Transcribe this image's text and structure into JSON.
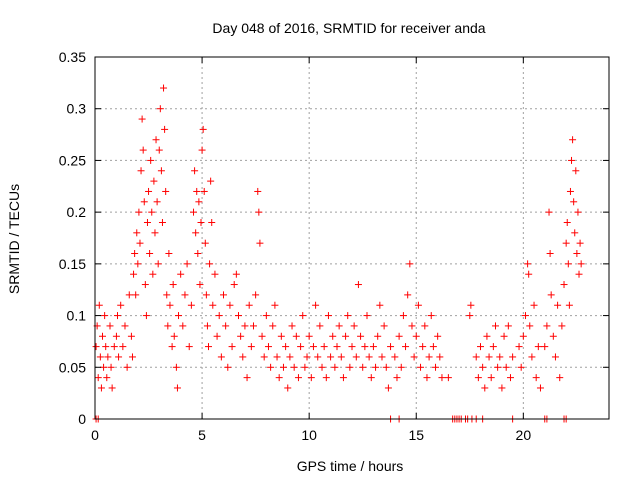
{
  "chart_data": {
    "type": "scatter",
    "title": "Day 048 of 2016, SRMTID for receiver anda",
    "xlabel": "GPS time / hours",
    "ylabel": "SRMTID / TECUs",
    "xlim": [
      0,
      24
    ],
    "ylim": [
      0,
      0.35
    ],
    "xticks": [
      0,
      5,
      10,
      15,
      20
    ],
    "xtick_labels": [
      "0",
      "5",
      "10",
      "15",
      "20"
    ],
    "yticks": [
      0,
      0.05,
      0.1,
      0.15,
      0.2,
      0.25,
      0.3,
      0.35
    ],
    "ytick_labels": [
      "0",
      "0.05",
      "0.1",
      "0.15",
      "0.2",
      "0.25",
      "0.3",
      "0.35"
    ],
    "grid": true,
    "marker": "+",
    "color": "#ff0000",
    "series": [
      {
        "name": "SRMTID",
        "points": [
          [
            0.05,
            0.07
          ],
          [
            0.1,
            0.09
          ],
          [
            0.15,
            0.04
          ],
          [
            0.2,
            0.11
          ],
          [
            0.25,
            0.06
          ],
          [
            0.3,
            0.03
          ],
          [
            0.35,
            0.08
          ],
          [
            0.4,
            0.05
          ],
          [
            0.45,
            0.1
          ],
          [
            0.5,
            0.07
          ],
          [
            0.55,
            0.04
          ],
          [
            0.6,
            0.06
          ],
          [
            0.7,
            0.09
          ],
          [
            0.75,
            0.05
          ],
          [
            0.8,
            0.03
          ],
          [
            0.9,
            0.07
          ],
          [
            1.0,
            0.08
          ],
          [
            1.05,
            0.1
          ],
          [
            1.1,
            0.06
          ],
          [
            1.2,
            0.11
          ],
          [
            1.3,
            0.07
          ],
          [
            1.4,
            0.09
          ],
          [
            1.5,
            0.05
          ],
          [
            1.6,
            0.12
          ],
          [
            1.7,
            0.08
          ],
          [
            1.75,
            0.06
          ],
          [
            1.8,
            0.14
          ],
          [
            1.85,
            0.16
          ],
          [
            1.9,
            0.12
          ],
          [
            1.95,
            0.18
          ],
          [
            2.0,
            0.15
          ],
          [
            2.05,
            0.2
          ],
          [
            2.1,
            0.17
          ],
          [
            2.15,
            0.24
          ],
          [
            2.2,
            0.29
          ],
          [
            2.25,
            0.26
          ],
          [
            2.3,
            0.21
          ],
          [
            2.35,
            0.13
          ],
          [
            2.4,
            0.1
          ],
          [
            2.45,
            0.19
          ],
          [
            2.5,
            0.22
          ],
          [
            2.55,
            0.16
          ],
          [
            2.6,
            0.25
          ],
          [
            2.65,
            0.2
          ],
          [
            2.7,
            0.14
          ],
          [
            2.75,
            0.23
          ],
          [
            2.8,
            0.18
          ],
          [
            2.85,
            0.27
          ],
          [
            2.9,
            0.21
          ],
          [
            2.95,
            0.15
          ],
          [
            3.0,
            0.26
          ],
          [
            3.05,
            0.3
          ],
          [
            3.1,
            0.24
          ],
          [
            3.15,
            0.19
          ],
          [
            3.2,
            0.32
          ],
          [
            3.25,
            0.28
          ],
          [
            3.3,
            0.22
          ],
          [
            3.35,
            0.12
          ],
          [
            3.4,
            0.09
          ],
          [
            3.45,
            0.16
          ],
          [
            3.5,
            0.11
          ],
          [
            3.6,
            0.07
          ],
          [
            3.65,
            0.13
          ],
          [
            3.7,
            0.08
          ],
          [
            3.8,
            0.05
          ],
          [
            3.85,
            0.03
          ],
          [
            3.9,
            0.1
          ],
          [
            4.0,
            0.14
          ],
          [
            4.1,
            0.09
          ],
          [
            4.2,
            0.12
          ],
          [
            4.3,
            0.15
          ],
          [
            4.4,
            0.07
          ],
          [
            4.5,
            0.11
          ],
          [
            4.6,
            0.2
          ],
          [
            4.65,
            0.24
          ],
          [
            4.7,
            0.18
          ],
          [
            4.75,
            0.22
          ],
          [
            4.8,
            0.16
          ],
          [
            4.85,
            0.21
          ],
          [
            4.9,
            0.13
          ],
          [
            4.95,
            0.19
          ],
          [
            5.0,
            0.26
          ],
          [
            5.05,
            0.28
          ],
          [
            5.1,
            0.22
          ],
          [
            5.15,
            0.17
          ],
          [
            5.2,
            0.12
          ],
          [
            5.25,
            0.09
          ],
          [
            5.3,
            0.07
          ],
          [
            5.35,
            0.15
          ],
          [
            5.4,
            0.23
          ],
          [
            5.45,
            0.19
          ],
          [
            5.5,
            0.11
          ],
          [
            5.6,
            0.14
          ],
          [
            5.7,
            0.08
          ],
          [
            5.8,
            0.1
          ],
          [
            5.9,
            0.06
          ],
          [
            6.0,
            0.12
          ],
          [
            6.1,
            0.09
          ],
          [
            6.2,
            0.05
          ],
          [
            6.3,
            0.11
          ],
          [
            6.4,
            0.07
          ],
          [
            6.5,
            0.13
          ],
          [
            6.6,
            0.14
          ],
          [
            6.7,
            0.1
          ],
          [
            6.8,
            0.08
          ],
          [
            6.9,
            0.06
          ],
          [
            7.0,
            0.09
          ],
          [
            7.1,
            0.04
          ],
          [
            7.2,
            0.11
          ],
          [
            7.3,
            0.07
          ],
          [
            7.4,
            0.09
          ],
          [
            7.5,
            0.12
          ],
          [
            7.6,
            0.22
          ],
          [
            7.65,
            0.2
          ],
          [
            7.7,
            0.17
          ],
          [
            7.8,
            0.08
          ],
          [
            7.9,
            0.06
          ],
          [
            8.0,
            0.1
          ],
          [
            8.1,
            0.07
          ],
          [
            8.2,
            0.05
          ],
          [
            8.3,
            0.09
          ],
          [
            8.4,
            0.11
          ],
          [
            8.5,
            0.06
          ],
          [
            8.6,
            0.04
          ],
          [
            8.7,
            0.08
          ],
          [
            8.8,
            0.05
          ],
          [
            8.9,
            0.07
          ],
          [
            9.0,
            0.03
          ],
          [
            9.1,
            0.06
          ],
          [
            9.2,
            0.09
          ],
          [
            9.3,
            0.05
          ],
          [
            9.4,
            0.08
          ],
          [
            9.5,
            0.04
          ],
          [
            9.6,
            0.07
          ],
          [
            9.7,
            0.1
          ],
          [
            9.8,
            0.05
          ],
          [
            9.9,
            0.06
          ],
          [
            10.0,
            0.08
          ],
          [
            10.1,
            0.04
          ],
          [
            10.2,
            0.07
          ],
          [
            10.3,
            0.11
          ],
          [
            10.4,
            0.06
          ],
          [
            10.5,
            0.09
          ],
          [
            10.6,
            0.05
          ],
          [
            10.7,
            0.07
          ],
          [
            10.8,
            0.04
          ],
          [
            10.9,
            0.1
          ],
          [
            11.0,
            0.06
          ],
          [
            11.1,
            0.08
          ],
          [
            11.2,
            0.05
          ],
          [
            11.3,
            0.07
          ],
          [
            11.4,
            0.09
          ],
          [
            11.5,
            0.06
          ],
          [
            11.6,
            0.04
          ],
          [
            11.7,
            0.08
          ],
          [
            11.8,
            0.1
          ],
          [
            11.9,
            0.05
          ],
          [
            12.0,
            0.07
          ],
          [
            12.1,
            0.09
          ],
          [
            12.2,
            0.06
          ],
          [
            12.3,
            0.13
          ],
          [
            12.4,
            0.08
          ],
          [
            12.5,
            0.05
          ],
          [
            12.6,
            0.07
          ],
          [
            12.7,
            0.1
          ],
          [
            12.8,
            0.06
          ],
          [
            12.9,
            0.04
          ],
          [
            13.0,
            0.07
          ],
          [
            13.1,
            0.05
          ],
          [
            13.2,
            0.08
          ],
          [
            13.3,
            0.11
          ],
          [
            13.4,
            0.06
          ],
          [
            13.5,
            0.09
          ],
          [
            13.6,
            0.05
          ],
          [
            13.7,
            0.03
          ],
          [
            13.8,
            0.07
          ],
          [
            14.0,
            0.06
          ],
          [
            14.1,
            0.04
          ],
          [
            14.2,
            0.08
          ],
          [
            14.3,
            0.05
          ],
          [
            14.4,
            0.1
          ],
          [
            14.5,
            0.07
          ],
          [
            14.6,
            0.12
          ],
          [
            14.7,
            0.15
          ],
          [
            14.8,
            0.09
          ],
          [
            14.9,
            0.06
          ],
          [
            15.0,
            0.08
          ],
          [
            15.1,
            0.11
          ],
          [
            15.2,
            0.05
          ],
          [
            15.3,
            0.07
          ],
          [
            15.4,
            0.09
          ],
          [
            15.5,
            0.04
          ],
          [
            15.6,
            0.06
          ],
          [
            15.7,
            0.1
          ],
          [
            15.8,
            0.07
          ],
          [
            15.9,
            0.05
          ],
          [
            16.0,
            0.08
          ],
          [
            16.1,
            0.06
          ],
          [
            16.2,
            0.04
          ],
          [
            16.5,
            0.04
          ],
          [
            17.5,
            0.1
          ],
          [
            17.55,
            0.11
          ],
          [
            17.8,
            0.06
          ],
          [
            17.9,
            0.04
          ],
          [
            18.0,
            0.07
          ],
          [
            18.1,
            0.05
          ],
          [
            18.2,
            0.03
          ],
          [
            18.3,
            0.08
          ],
          [
            18.4,
            0.06
          ],
          [
            18.5,
            0.04
          ],
          [
            18.6,
            0.07
          ],
          [
            18.7,
            0.09
          ],
          [
            18.8,
            0.05
          ],
          [
            18.9,
            0.06
          ],
          [
            19.0,
            0.03
          ],
          [
            19.1,
            0.08
          ],
          [
            19.2,
            0.05
          ],
          [
            19.3,
            0.09
          ],
          [
            19.4,
            0.04
          ],
          [
            19.5,
            0.06
          ],
          [
            19.8,
            0.07
          ],
          [
            19.9,
            0.05
          ],
          [
            20.0,
            0.08
          ],
          [
            20.1,
            0.1
          ],
          [
            20.2,
            0.15
          ],
          [
            20.25,
            0.14
          ],
          [
            20.3,
            0.09
          ],
          [
            20.4,
            0.06
          ],
          [
            20.5,
            0.11
          ],
          [
            20.6,
            0.04
          ],
          [
            20.7,
            0.07
          ],
          [
            20.8,
            0.03
          ],
          [
            21.0,
            0.07
          ],
          [
            21.1,
            0.09
          ],
          [
            21.2,
            0.2
          ],
          [
            21.25,
            0.16
          ],
          [
            21.3,
            0.12
          ],
          [
            21.4,
            0.08
          ],
          [
            21.5,
            0.06
          ],
          [
            21.6,
            0.11
          ],
          [
            21.7,
            0.04
          ],
          [
            21.8,
            0.09
          ],
          [
            21.9,
            0.13
          ],
          [
            22.0,
            0.17
          ],
          [
            22.05,
            0.19
          ],
          [
            22.1,
            0.15
          ],
          [
            22.15,
            0.11
          ],
          [
            22.2,
            0.22
          ],
          [
            22.25,
            0.25
          ],
          [
            22.3,
            0.27
          ],
          [
            22.35,
            0.21
          ],
          [
            22.4,
            0.18
          ],
          [
            22.45,
            0.24
          ],
          [
            22.5,
            0.16
          ],
          [
            22.55,
            0.2
          ],
          [
            22.6,
            0.14
          ],
          [
            22.65,
            0.17
          ],
          [
            22.7,
            0.15
          ]
        ],
        "zero_points": [
          0.05,
          0.15,
          13.8,
          14.2,
          16.7,
          16.8,
          16.9,
          17.0,
          17.1,
          17.3,
          17.4,
          17.6,
          17.8,
          18.1,
          19.5,
          21.0,
          21.1,
          21.9,
          22.0
        ]
      }
    ]
  }
}
